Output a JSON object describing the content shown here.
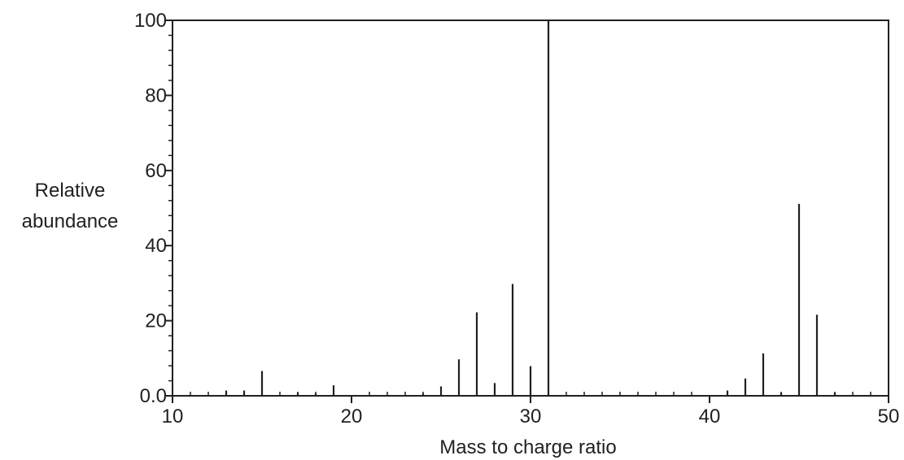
{
  "chart_data": {
    "type": "bar",
    "title": "",
    "xlabel": "Mass to charge ratio",
    "ylabel": [
      "Relative",
      "abundance"
    ],
    "xlim": [
      10,
      50
    ],
    "ylim": [
      0,
      100
    ],
    "grid": false,
    "x_major_ticks": [
      10,
      20,
      30,
      40,
      50
    ],
    "y_major_ticks": [
      0,
      20,
      40,
      60,
      80,
      100
    ],
    "x_tick_labels": [
      "10",
      "20",
      "30",
      "40",
      "50"
    ],
    "y_tick_labels": [
      "0.0",
      "20",
      "40",
      "60",
      "80",
      "100"
    ],
    "x_minor_step": 1,
    "y_minor_step": 4,
    "bar_color": "#231f20",
    "axis_color": "#231f20",
    "points": [
      {
        "x": 13,
        "y": 1.4
      },
      {
        "x": 14,
        "y": 1.4
      },
      {
        "x": 15,
        "y": 6.6
      },
      {
        "x": 17,
        "y": 0.8
      },
      {
        "x": 18,
        "y": 0.6
      },
      {
        "x": 19,
        "y": 2.8
      },
      {
        "x": 24,
        "y": 0.6
      },
      {
        "x": 25,
        "y": 2.5
      },
      {
        "x": 26,
        "y": 9.7
      },
      {
        "x": 27,
        "y": 22.2
      },
      {
        "x": 28,
        "y": 3.4
      },
      {
        "x": 29,
        "y": 29.8
      },
      {
        "x": 30,
        "y": 7.9
      },
      {
        "x": 31,
        "y": 100
      },
      {
        "x": 41,
        "y": 1.4
      },
      {
        "x": 42,
        "y": 4.6
      },
      {
        "x": 43,
        "y": 11.3
      },
      {
        "x": 44,
        "y": 0.8
      },
      {
        "x": 45,
        "y": 51.1
      },
      {
        "x": 46,
        "y": 21.6
      },
      {
        "x": 47,
        "y": 0.8
      }
    ]
  }
}
